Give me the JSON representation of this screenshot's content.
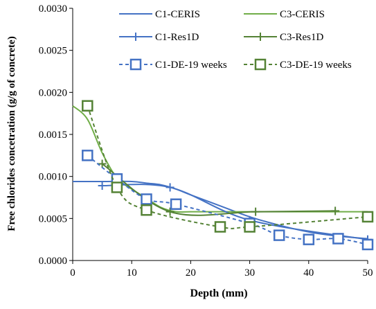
{
  "chart_data": {
    "type": "line",
    "xlabel": "Depth (mm)",
    "ylabel": "Free chlorides concetration  (g/g of concrete)",
    "xlim": [
      0,
      50
    ],
    "ylim": [
      0.0,
      0.003
    ],
    "x_ticks": [
      0,
      10,
      20,
      30,
      40,
      50
    ],
    "y_ticks": [
      0.0,
      0.0005,
      0.001,
      0.0015,
      0.002,
      0.0025,
      0.003
    ],
    "x_tick_labels": [
      "0",
      "10",
      "20",
      "30",
      "40",
      "50"
    ],
    "y_tick_labels": [
      "0.0000",
      "0.0005",
      "0.0010",
      "0.0015",
      "0.0020",
      "0.0025",
      "0.0030"
    ],
    "grid": false,
    "legend_position": "top-right",
    "series": [
      {
        "name": "C1-CERIS",
        "color": "#4472C4",
        "line_style": "solid",
        "marker": "none",
        "x": [
          0,
          5,
          10,
          12.5,
          15,
          17.5,
          20,
          25,
          30,
          35,
          40,
          45,
          50
        ],
        "y": [
          0.00094,
          0.00094,
          0.00094,
          0.00092,
          0.0009,
          0.00085,
          0.00078,
          0.00065,
          0.00052,
          0.00042,
          0.00034,
          0.00029,
          0.00026
        ]
      },
      {
        "name": "C3-CERIS",
        "color": "#70AD47",
        "line_style": "solid",
        "marker": "none",
        "x": [
          0,
          2.5,
          5,
          7.5,
          10,
          12.5,
          15,
          17.5,
          20,
          25,
          30,
          35,
          40,
          45,
          50
        ],
        "y": [
          0.00184,
          0.00168,
          0.00128,
          0.00098,
          0.00085,
          0.00074,
          0.00063,
          0.00058,
          0.00058,
          0.00058,
          0.00058,
          0.00058,
          0.00058,
          0.00058,
          0.00058
        ]
      },
      {
        "name": "C1-Res1D",
        "color": "#4472C4",
        "line_style": "solid",
        "marker": "plus",
        "x": [
          5,
          16.5,
          30,
          50
        ],
        "y": [
          0.00089,
          0.00087,
          0.00048,
          0.00025
        ]
      },
      {
        "name": "C3-Res1D",
        "color": "#548235",
        "line_style": "solid",
        "marker": "plus",
        "x": [
          5,
          16.5,
          31,
          44.5
        ],
        "y": [
          0.00115,
          0.00058,
          0.00058,
          0.00059
        ]
      },
      {
        "name": "C1-DE-19 weeks",
        "color": "#4472C4",
        "line_style": "dashed",
        "marker": "square",
        "x": [
          2.5,
          7.5,
          12.5,
          17.5,
          30,
          35,
          40,
          45,
          50
        ],
        "y": [
          0.00125,
          0.00097,
          0.00073,
          0.00067,
          0.00044,
          0.0003,
          0.00025,
          0.00026,
          0.00019
        ]
      },
      {
        "name": "C3-DE-19 weeks",
        "color": "#548235",
        "line_style": "dashed",
        "marker": "square",
        "x": [
          2.5,
          7.5,
          12.5,
          25,
          30,
          50
        ],
        "y": [
          0.00184,
          0.00087,
          0.0006,
          0.0004,
          0.0004,
          0.00052
        ]
      }
    ]
  }
}
